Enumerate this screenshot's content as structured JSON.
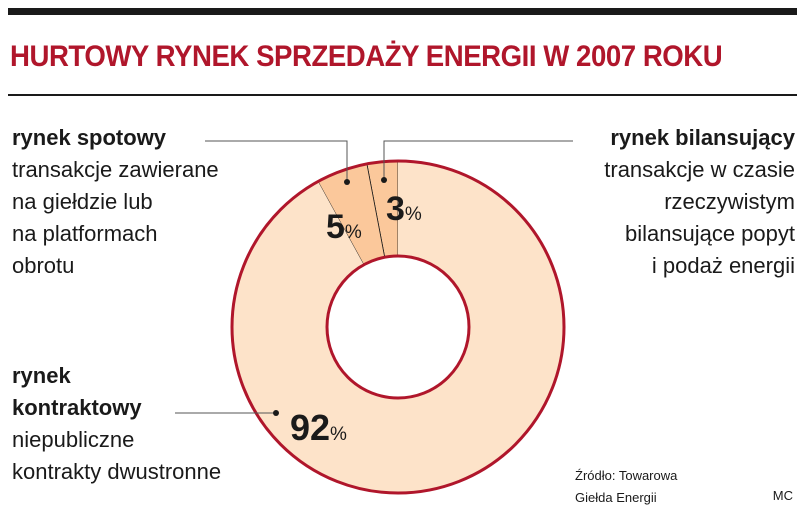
{
  "title": "HURTOWY RYNEK SPRZEDAŻY ENERGII W 2007 ROKU",
  "source_line1": "Źródło: Towarowa",
  "source_line2": "Giełda Energii",
  "author": "MC",
  "colors": {
    "title": "#b0162b",
    "ring_fill": "#fde3c9",
    "small_slice_fill": "#fbc89b",
    "ring_stroke": "#b0162b",
    "text": "#1a1a1a"
  },
  "labels": {
    "spot": {
      "heading": "rynek spotowy",
      "lines": [
        "transakcje zawierane",
        "na giełdzie lub",
        "na platformach",
        "obrotu"
      ]
    },
    "balancing": {
      "heading": "rynek bilansujący",
      "lines": [
        "transakcje w czasie",
        "rzeczywistym",
        "bilansujące popyt",
        "i podaż energii"
      ]
    },
    "contract": {
      "heading_lines": [
        "rynek",
        "kontraktowy"
      ],
      "lines": [
        "niepubliczne",
        "kontrakty dwustronne"
      ]
    }
  },
  "chart_data": {
    "type": "pie",
    "donut": true,
    "title": "HURTOWY RYNEK SPRZEDAŻY ENERGII W 2007 ROKU",
    "unit": "%",
    "categories": [
      "rynek bilansujący",
      "rynek spotowy",
      "rynek kontraktowy"
    ],
    "values": [
      3,
      5,
      92
    ],
    "value_labels": [
      "3",
      "5",
      "92"
    ]
  }
}
